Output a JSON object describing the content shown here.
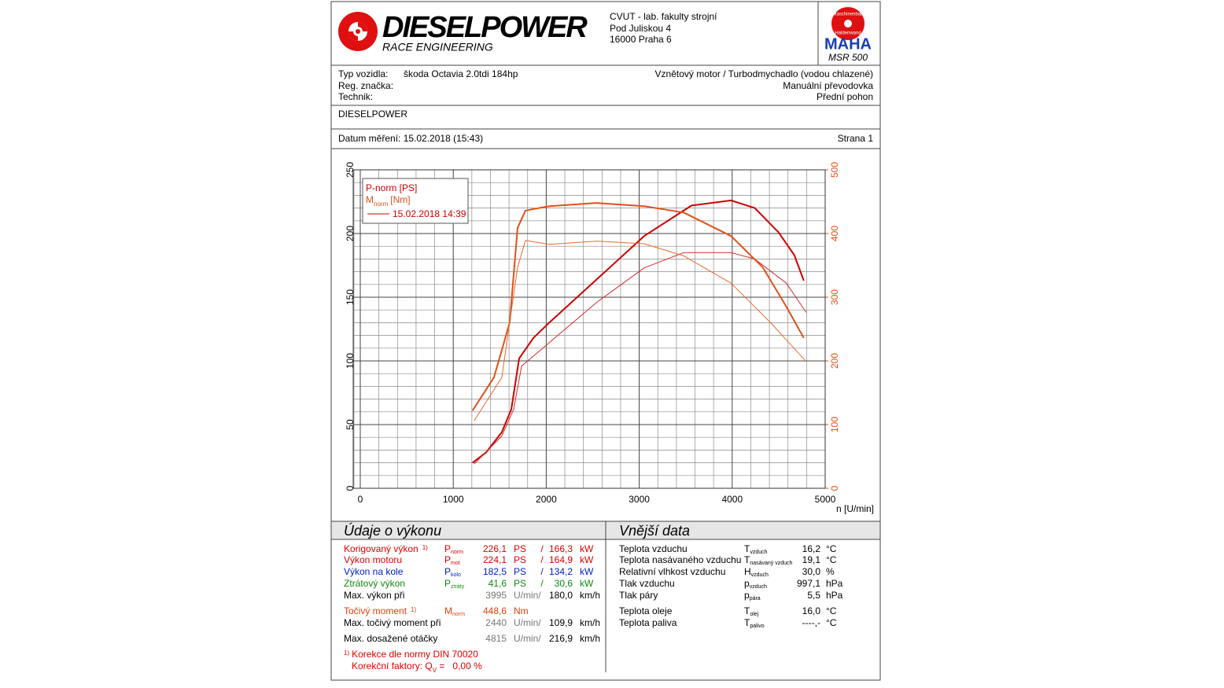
{
  "header": {
    "brand": "DIESELPOWER",
    "tagline": "RACE ENGINEERING",
    "address": [
      "CVUT - lab. fakulty strojní",
      "Pod Juliskou 4",
      "16000 Praha 6"
    ],
    "badge": {
      "top": "Maschinenbau",
      "bottom": "Haldenwang",
      "logo": "MAHA",
      "model": "MSR 500"
    }
  },
  "vehicle": {
    "left": [
      {
        "label": "Typ vozidla:",
        "value": "škoda Octavia 2.0tdi 184hp"
      },
      {
        "label": "Reg. značka:"
      },
      {
        "label": "Technik:"
      }
    ],
    "right": [
      "Vznětový motor / Turbodmychadlo (vodou chlazené)",
      "Manuální převodovka",
      "Přední pohon"
    ]
  },
  "customer": "DIESELPOWER",
  "measurement": {
    "date": "Datum měření: 15.02.2018 (15:43)",
    "page": "Strana 1"
  },
  "chart_data": {
    "type": "line",
    "xlabel": "n [U/min]",
    "xlim": [
      0,
      5000
    ],
    "xticks": [
      0,
      1000,
      2000,
      3000,
      4000,
      5000
    ],
    "ylim": [
      0,
      250
    ],
    "yticks": [
      0,
      50,
      100,
      150,
      200,
      250
    ],
    "y2lim": [
      0,
      500
    ],
    "y2ticks": [
      0,
      100,
      200,
      300,
      400,
      500
    ],
    "y2color": "#e0501a",
    "grid": true,
    "legend": {
      "power": "P-norm [PS]",
      "torque": {
        "main": "M",
        "sub": "norm",
        "unit": "[Nm]"
      },
      "run": "15.02.2018 14:39"
    },
    "series": [
      {
        "color": "#cc0000",
        "width": 2,
        "x": [
          1207,
          1352,
          1522,
          1624,
          1709,
          1862,
          2032,
          2543,
          3053,
          3563,
          3988,
          4243,
          4498,
          4668,
          4770
        ],
        "values": [
          20,
          28,
          44,
          62,
          102,
          118,
          130,
          164,
          198,
          222,
          226,
          220,
          201,
          183,
          163
        ]
      },
      {
        "color": "#d42a2a",
        "width": 1,
        "x": [
          1224,
          1522,
          1650,
          1735,
          1947,
          2543,
          3053,
          3478,
          3988,
          4243,
          4583,
          4796
        ],
        "values": [
          19,
          41,
          62,
          96,
          109,
          146,
          173,
          185,
          185,
          180,
          161,
          138
        ]
      },
      {
        "color": "#e0501a",
        "width": 2,
        "axis": "y2",
        "x": [
          1207,
          1437,
          1607,
          1692,
          1777,
          2032,
          2543,
          3053,
          3478,
          3988,
          4328,
          4583,
          4770
        ],
        "values": [
          122,
          174,
          260,
          409,
          436,
          443,
          448,
          443,
          433,
          396,
          347,
          285,
          236
        ]
      },
      {
        "color": "#ea6a30",
        "width": 1,
        "axis": "y2",
        "x": [
          1224,
          1522,
          1692,
          1777,
          2032,
          2543,
          3053,
          3478,
          3988,
          4413,
          4796
        ],
        "values": [
          106,
          174,
          347,
          389,
          383,
          388,
          384,
          365,
          322,
          260,
          199
        ]
      }
    ]
  },
  "performance": {
    "title": "Údaje o výkonu",
    "rows": [
      {
        "label": "Korigovaný výkon",
        "note": "1)",
        "sym": "P",
        "sub": "norm",
        "v1": "226,1",
        "u1": "PS",
        "sep": "/",
        "v2": "166,3",
        "u2": "kW",
        "color": "#e00000"
      },
      {
        "label": "Výkon motoru",
        "sym": "P",
        "sub": "mot",
        "v1": "224,1",
        "u1": "PS",
        "sep": "/",
        "v2": "164,9",
        "u2": "kW",
        "color": "#e00000"
      },
      {
        "label": "Výkon na kole",
        "sym": "P",
        "sub": "kolo",
        "v1": "182,5",
        "u1": "PS",
        "sep": "/",
        "v2": "134,2",
        "u2": "kW",
        "color": "#0020c0"
      },
      {
        "label": "Ztrátový výkon",
        "sym": "P",
        "sub": "ztráty",
        "v1": "41,6",
        "u1": "PS",
        "sep": "/",
        "v2": "30,6",
        "u2": "kW",
        "color": "#108a10"
      },
      {
        "label": "Max. výkon při",
        "v1": "3995",
        "u1": "U/min/",
        "v2": "180,0",
        "u2": "km/h"
      },
      {
        "label": "Točivý moment",
        "note": "1)",
        "sym": "M",
        "sub": "norm",
        "v1": "448,6",
        "u1": "Nm",
        "color": "#e8400a"
      },
      {
        "label": "Max. točivý moment při",
        "v1": "2440",
        "u1": "U/min/",
        "v2": "109,9",
        "u2": "km/h"
      },
      {
        "label": "Max. dosažené otáčky",
        "v1": "4815",
        "u1": "U/min/",
        "v2": "216,9",
        "u2": "km/h"
      }
    ],
    "footnote": {
      "mark": "1)",
      "text": "Korekce dle normy DIN 70020",
      "factor": "Korekční faktory: Q",
      "factor_sub": "V",
      "factor_value": " =   0,00 %"
    }
  },
  "ambient": {
    "title": "Vnější data",
    "rows": [
      {
        "label": "Teplota vzduchu",
        "sym": "T",
        "sub": "vzduch",
        "v1": "16,2",
        "u1": "°C"
      },
      {
        "label": "Teplota nasávaného vzduchu",
        "sym": "T",
        "sub": "nasávaný vzduch",
        "v1": "19,1",
        "u1": "°C"
      },
      {
        "label": "Relativní vlhkost vzduchu",
        "sym": "H",
        "sub": "vzduch",
        "v1": "30,0",
        "u1": "%"
      },
      {
        "label": "Tlak vzduchu",
        "sym": "p",
        "sub": "vzduch",
        "v1": "997,1",
        "u1": "hPa"
      },
      {
        "label": "Tlak páry",
        "sym": "p",
        "sub": "pára",
        "v1": "5,5",
        "u1": "hPa"
      },
      {
        "label": "Teplota oleje",
        "sym": "T",
        "sub": "olej",
        "v1": "16,0",
        "u1": "°C"
      },
      {
        "label": "Teplota paliva",
        "sym": "T",
        "sub": "palivo",
        "v1": "----,-",
        "u1": "°C"
      }
    ]
  }
}
